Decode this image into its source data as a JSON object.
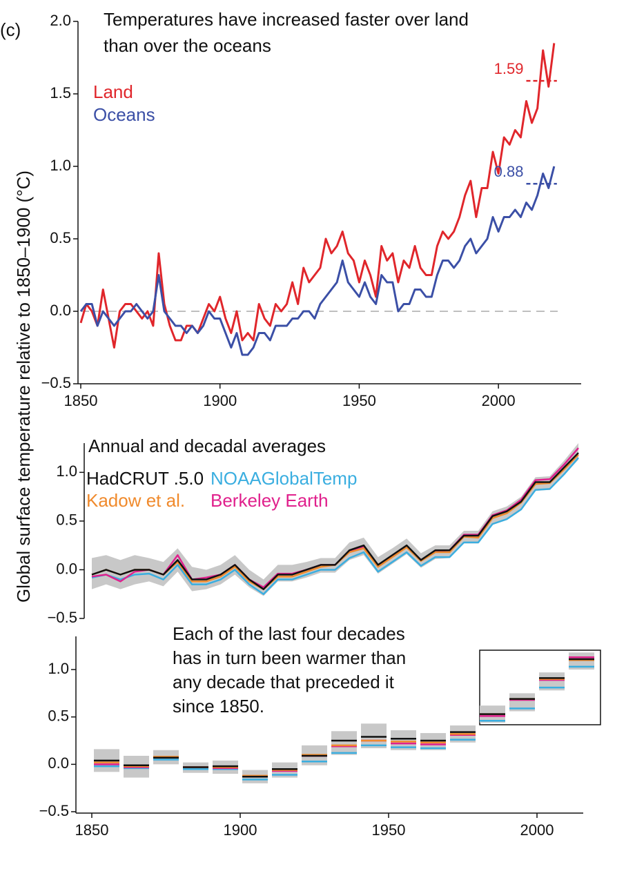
{
  "panel_label": "(c)",
  "ylabel": "Global surface temperature relative to 1850–1900 (°C)",
  "chart_data": [
    {
      "type": "line",
      "title": [
        "Temperatures have increased faster over land",
        "than over the oceans"
      ],
      "x": [
        1850,
        1852,
        1854,
        1856,
        1858,
        1860,
        1862,
        1864,
        1866,
        1868,
        1870,
        1872,
        1874,
        1876,
        1878,
        1880,
        1882,
        1884,
        1886,
        1888,
        1890,
        1892,
        1894,
        1896,
        1898,
        1900,
        1902,
        1904,
        1906,
        1908,
        1910,
        1912,
        1914,
        1916,
        1918,
        1920,
        1922,
        1924,
        1926,
        1928,
        1930,
        1932,
        1934,
        1936,
        1938,
        1940,
        1942,
        1944,
        1946,
        1948,
        1950,
        1952,
        1954,
        1956,
        1958,
        1960,
        1962,
        1964,
        1966,
        1968,
        1970,
        1972,
        1974,
        1976,
        1978,
        1980,
        1982,
        1984,
        1986,
        1988,
        1990,
        1992,
        1994,
        1996,
        1998,
        2000,
        2002,
        2004,
        2006,
        2008,
        2010,
        2012,
        2014,
        2016,
        2018,
        2020
      ],
      "series": [
        {
          "name": "Land",
          "color": "#e0262b",
          "recent_mean": 1.59,
          "values": [
            -0.08,
            0.05,
            0.0,
            -0.1,
            0.15,
            -0.05,
            -0.25,
            0.0,
            0.05,
            0.05,
            0.0,
            -0.05,
            0.0,
            -0.1,
            0.4,
            0.05,
            -0.1,
            -0.2,
            -0.2,
            -0.1,
            -0.1,
            -0.15,
            -0.05,
            0.05,
            0.0,
            0.1,
            -0.05,
            -0.15,
            0.0,
            -0.2,
            -0.15,
            -0.2,
            0.05,
            -0.05,
            -0.1,
            0.05,
            0.0,
            0.05,
            0.2,
            0.05,
            0.3,
            0.2,
            0.25,
            0.3,
            0.5,
            0.4,
            0.45,
            0.55,
            0.4,
            0.35,
            0.2,
            0.35,
            0.25,
            0.1,
            0.45,
            0.35,
            0.4,
            0.2,
            0.35,
            0.3,
            0.45,
            0.3,
            0.25,
            0.25,
            0.45,
            0.55,
            0.5,
            0.55,
            0.65,
            0.8,
            0.9,
            0.65,
            0.85,
            0.85,
            1.1,
            0.95,
            1.2,
            1.15,
            1.25,
            1.2,
            1.45,
            1.3,
            1.4,
            1.8,
            1.55,
            1.85
          ]
        },
        {
          "name": "Oceans",
          "color": "#3b4fa6",
          "recent_mean": 0.88,
          "values": [
            0.0,
            0.05,
            0.05,
            -0.1,
            0.0,
            -0.05,
            -0.1,
            -0.05,
            0.0,
            0.0,
            0.05,
            0.0,
            -0.05,
            0.0,
            0.25,
            0.0,
            -0.05,
            -0.1,
            -0.1,
            -0.15,
            -0.1,
            -0.15,
            -0.1,
            0.0,
            -0.05,
            -0.05,
            -0.15,
            -0.25,
            -0.15,
            -0.3,
            -0.3,
            -0.25,
            -0.15,
            -0.15,
            -0.2,
            -0.1,
            -0.1,
            -0.1,
            -0.05,
            -0.05,
            0.0,
            0.0,
            -0.05,
            0.05,
            0.1,
            0.15,
            0.2,
            0.35,
            0.2,
            0.15,
            0.1,
            0.2,
            0.1,
            0.05,
            0.25,
            0.2,
            0.2,
            0.0,
            0.05,
            0.05,
            0.15,
            0.15,
            0.1,
            0.1,
            0.25,
            0.35,
            0.35,
            0.3,
            0.35,
            0.45,
            0.5,
            0.4,
            0.45,
            0.5,
            0.65,
            0.55,
            0.65,
            0.65,
            0.7,
            0.65,
            0.75,
            0.7,
            0.8,
            0.95,
            0.85,
            1.0
          ]
        }
      ],
      "hline": 0,
      "xlim": [
        1850,
        2025
      ],
      "ylim": [
        -0.5,
        2.0
      ],
      "xticks": [
        1850,
        1900,
        1950,
        2000
      ],
      "yticks": [
        {
          "value": -0.5,
          "label": "−0.5"
        },
        {
          "value": 0,
          "label": "0.0"
        },
        0.5,
        {
          "value": 1,
          "label": "1.0"
        },
        1.5,
        {
          "value": 2,
          "label": "2.0"
        }
      ]
    },
    {
      "type": "line",
      "title": "Annual and decadal averages",
      "x": [
        1850,
        1855,
        1860,
        1865,
        1870,
        1875,
        1880,
        1885,
        1890,
        1895,
        1900,
        1905,
        1910,
        1915,
        1920,
        1925,
        1930,
        1935,
        1940,
        1945,
        1950,
        1955,
        1960,
        1965,
        1970,
        1975,
        1980,
        1985,
        1990,
        1995,
        2000,
        2005,
        2010,
        2015,
        2020
      ],
      "band": {
        "color": "#c8c8c8",
        "low": [
          -0.2,
          -0.15,
          -0.2,
          -0.15,
          -0.12,
          -0.17,
          -0.02,
          -0.22,
          -0.2,
          -0.15,
          -0.05,
          -0.18,
          -0.27,
          -0.12,
          -0.12,
          -0.08,
          -0.03,
          -0.03,
          0.1,
          0.15,
          -0.04,
          0.06,
          0.16,
          0.02,
          0.11,
          0.12,
          0.27,
          0.27,
          0.46,
          0.51,
          0.61,
          0.81,
          0.82,
          0.97,
          1.13
        ],
        "high": [
          0.12,
          0.15,
          0.1,
          0.15,
          0.12,
          0.08,
          0.22,
          0.03,
          0.0,
          0.05,
          0.15,
          0.0,
          -0.1,
          0.05,
          0.05,
          0.08,
          0.12,
          0.12,
          0.28,
          0.33,
          0.13,
          0.22,
          0.32,
          0.17,
          0.25,
          0.25,
          0.4,
          0.4,
          0.6,
          0.65,
          0.75,
          0.95,
          0.96,
          1.12,
          1.3
        ]
      },
      "series": [
        {
          "name": "NOAAGlobalTemp",
          "color": "#3aaee0",
          "values": [
            -0.08,
            -0.05,
            -0.1,
            -0.05,
            -0.04,
            -0.1,
            0.05,
            -0.15,
            -0.15,
            -0.1,
            0.0,
            -0.15,
            -0.25,
            -0.1,
            -0.1,
            -0.05,
            0.0,
            0.0,
            0.12,
            0.18,
            -0.02,
            0.08,
            0.18,
            0.04,
            0.13,
            0.13,
            0.28,
            0.28,
            0.47,
            0.52,
            0.62,
            0.82,
            0.83,
            0.98,
            1.15
          ]
        },
        {
          "name": "Berkeley Earth",
          "color": "#e0208c",
          "values": [
            -0.07,
            -0.05,
            -0.12,
            -0.02,
            0.0,
            -0.05,
            0.15,
            -0.1,
            -0.08,
            -0.05,
            0.05,
            -0.1,
            -0.18,
            -0.04,
            -0.04,
            0.0,
            0.05,
            0.05,
            0.19,
            0.24,
            0.04,
            0.14,
            0.24,
            0.1,
            0.19,
            0.2,
            0.36,
            0.36,
            0.56,
            0.61,
            0.72,
            0.92,
            0.93,
            1.08,
            1.25
          ]
        },
        {
          "name": "Kadow et al.",
          "color": "#f08a2c",
          "values": [
            -0.05,
            0.0,
            -0.05,
            0.0,
            0.0,
            -0.05,
            0.08,
            -0.12,
            -0.12,
            -0.07,
            0.03,
            -0.12,
            -0.2,
            -0.07,
            -0.07,
            -0.02,
            0.03,
            0.05,
            0.18,
            0.22,
            0.03,
            0.13,
            0.23,
            0.09,
            0.18,
            0.18,
            0.34,
            0.33,
            0.53,
            0.58,
            0.69,
            0.88,
            0.89,
            1.03,
            1.18
          ]
        },
        {
          "name": "HadCRUT .5.0",
          "color": "#111111",
          "values": [
            -0.05,
            0.0,
            -0.05,
            0.0,
            0.0,
            -0.05,
            0.1,
            -0.1,
            -0.1,
            -0.05,
            0.05,
            -0.1,
            -0.2,
            -0.05,
            -0.05,
            0.0,
            0.05,
            0.05,
            0.2,
            0.25,
            0.05,
            0.15,
            0.25,
            0.1,
            0.2,
            0.2,
            0.35,
            0.35,
            0.55,
            0.6,
            0.7,
            0.9,
            0.9,
            1.05,
            1.2
          ]
        }
      ],
      "xlim": [
        1850,
        2020
      ],
      "ylim": [
        -0.5,
        1.3
      ],
      "yticks": [
        {
          "value": -0.5,
          "label": "−0.5"
        },
        {
          "value": 0,
          "label": "0.0"
        },
        0.5,
        {
          "value": 1,
          "label": "1.0"
        }
      ]
    },
    {
      "type": "step",
      "annotation": [
        "Each of the last four decades",
        "has in turn been warmer than",
        "any decade that preceded it",
        "since 1850."
      ],
      "x": [
        1850,
        1860,
        1870,
        1880,
        1890,
        1900,
        1910,
        1920,
        1930,
        1940,
        1950,
        1960,
        1970,
        1980,
        1990,
        2000,
        2010
      ],
      "band": {
        "color": "#c8c8c8",
        "low": [
          -0.08,
          -0.14,
          0.0,
          -0.09,
          -0.1,
          -0.2,
          -0.14,
          -0.01,
          0.1,
          0.17,
          0.15,
          0.15,
          0.23,
          0.44,
          0.56,
          0.78,
          1.0
        ],
        "high": [
          0.16,
          0.09,
          0.15,
          0.02,
          0.04,
          -0.06,
          0.02,
          0.2,
          0.35,
          0.43,
          0.36,
          0.33,
          0.41,
          0.62,
          0.75,
          0.97,
          1.18
        ]
      },
      "series": [
        {
          "name": "NOAAGlobalTemp",
          "color": "#3aaee0",
          "values": [
            -0.02,
            -0.04,
            0.05,
            -0.05,
            -0.05,
            -0.16,
            -0.11,
            0.03,
            0.12,
            0.2,
            0.18,
            0.17,
            0.26,
            0.46,
            0.59,
            0.81,
            1.03
          ]
        },
        {
          "name": "Berkeley Earth",
          "color": "#e0208c",
          "values": [
            0.0,
            -0.03,
            0.07,
            -0.03,
            -0.04,
            -0.13,
            -0.07,
            0.09,
            0.19,
            0.25,
            0.22,
            0.21,
            0.31,
            0.51,
            0.68,
            0.89,
            1.13
          ]
        },
        {
          "name": "Kadow et al.",
          "color": "#f08a2c",
          "values": [
            0.02,
            -0.02,
            0.08,
            -0.03,
            -0.03,
            -0.12,
            -0.06,
            0.1,
            0.2,
            0.25,
            0.24,
            0.23,
            0.32,
            0.53,
            0.69,
            0.9,
            1.1
          ]
        },
        {
          "name": "HadCRUT .5.0",
          "color": "#111111",
          "values": [
            0.04,
            -0.01,
            0.07,
            -0.03,
            -0.02,
            -0.13,
            -0.05,
            0.09,
            0.25,
            0.29,
            0.27,
            0.25,
            0.34,
            0.53,
            0.69,
            0.91,
            1.11
          ]
        }
      ],
      "xlim": [
        1850,
        2020
      ],
      "ylim": [
        -0.5,
        1.35
      ],
      "xticks": [
        1850,
        1900,
        1950,
        2000
      ],
      "yticks": [
        {
          "value": -0.5,
          "label": "−0.5"
        },
        {
          "value": 0,
          "label": "0.0"
        },
        0.5,
        {
          "value": 1,
          "label": "1.0"
        }
      ]
    }
  ]
}
